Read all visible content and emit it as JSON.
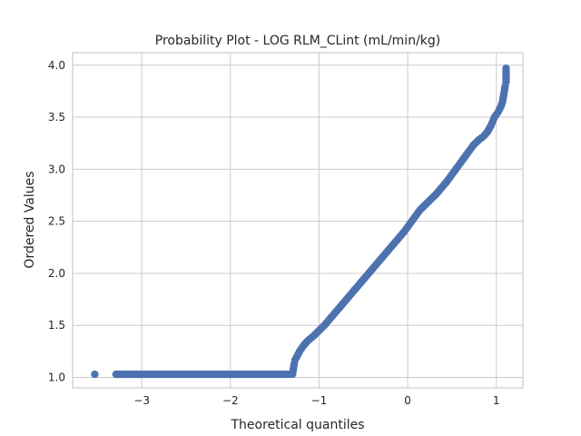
{
  "chart_data": {
    "type": "scatter",
    "title": "Probability Plot - LOG RLM_CLint (mL/min/kg)",
    "xlabel": "Theoretical quantiles",
    "ylabel": "Ordered Values",
    "xlim": [
      -3.78,
      1.3
    ],
    "ylim": [
      0.9,
      4.12
    ],
    "xticks": [
      -3,
      -2,
      -1,
      0,
      1
    ],
    "xtick_labels": [
      "−3",
      "−2",
      "−1",
      "0",
      "1"
    ],
    "yticks": [
      1.0,
      1.5,
      2.0,
      2.5,
      3.0,
      3.5,
      4.0
    ],
    "ytick_labels": [
      "1.0",
      "1.5",
      "2.0",
      "2.5",
      "3.0",
      "3.5",
      "4.0"
    ],
    "grid": true,
    "marker_color": "#4c72b0",
    "series": [
      {
        "points": [
          [
            -3.53,
            1.03
          ],
          [
            -3.29,
            1.03
          ],
          [
            -3.15,
            1.03
          ],
          [
            -3.05,
            1.03
          ],
          [
            -2.97,
            1.03
          ],
          [
            -2.9,
            1.03
          ],
          [
            -2.84,
            1.03
          ],
          [
            -2.78,
            1.03
          ],
          [
            -2.72,
            1.03
          ],
          [
            -2.66,
            1.03
          ],
          [
            -2.6,
            1.03
          ],
          [
            -2.54,
            1.03
          ],
          [
            -2.48,
            1.03
          ],
          [
            -2.42,
            1.03
          ],
          [
            -2.36,
            1.03
          ],
          [
            -2.3,
            1.03
          ],
          [
            -2.24,
            1.03
          ],
          [
            -2.18,
            1.03
          ],
          [
            -2.12,
            1.03
          ],
          [
            -2.06,
            1.03
          ],
          [
            -2.0,
            1.03
          ],
          [
            -1.94,
            1.03
          ],
          [
            -1.88,
            1.03
          ],
          [
            -1.82,
            1.03
          ],
          [
            -1.76,
            1.03
          ],
          [
            -1.7,
            1.03
          ],
          [
            -1.64,
            1.03
          ],
          [
            -1.58,
            1.03
          ],
          [
            -1.52,
            1.03
          ],
          [
            -1.46,
            1.03
          ],
          [
            -1.4,
            1.03
          ],
          [
            -1.34,
            1.03
          ],
          [
            -1.3,
            1.03
          ],
          [
            -1.29,
            1.08
          ],
          [
            -1.28,
            1.13
          ],
          [
            -1.27,
            1.17
          ],
          [
            -1.25,
            1.2
          ],
          [
            -1.22,
            1.25
          ],
          [
            -1.18,
            1.3
          ],
          [
            -1.13,
            1.35
          ],
          [
            -1.06,
            1.4
          ],
          [
            -1.0,
            1.45
          ],
          [
            -0.94,
            1.5
          ],
          [
            -0.88,
            1.56
          ],
          [
            -0.82,
            1.62
          ],
          [
            -0.76,
            1.68
          ],
          [
            -0.7,
            1.74
          ],
          [
            -0.64,
            1.8
          ],
          [
            -0.58,
            1.86
          ],
          [
            -0.52,
            1.92
          ],
          [
            -0.46,
            1.98
          ],
          [
            -0.4,
            2.04
          ],
          [
            -0.34,
            2.1
          ],
          [
            -0.28,
            2.16
          ],
          [
            -0.22,
            2.22
          ],
          [
            -0.16,
            2.28
          ],
          [
            -0.1,
            2.34
          ],
          [
            -0.04,
            2.4
          ],
          [
            0.02,
            2.47
          ],
          [
            0.08,
            2.54
          ],
          [
            0.14,
            2.61
          ],
          [
            0.2,
            2.66
          ],
          [
            0.26,
            2.71
          ],
          [
            0.32,
            2.76
          ],
          [
            0.38,
            2.82
          ],
          [
            0.44,
            2.88
          ],
          [
            0.5,
            2.95
          ],
          [
            0.56,
            3.02
          ],
          [
            0.62,
            3.09
          ],
          [
            0.68,
            3.16
          ],
          [
            0.74,
            3.23
          ],
          [
            0.8,
            3.28
          ],
          [
            0.86,
            3.32
          ],
          [
            0.9,
            3.36
          ],
          [
            0.94,
            3.42
          ],
          [
            0.98,
            3.5
          ],
          [
            1.02,
            3.55
          ],
          [
            1.05,
            3.6
          ],
          [
            1.07,
            3.65
          ],
          [
            1.08,
            3.7
          ],
          [
            1.09,
            3.75
          ],
          [
            1.1,
            3.8
          ],
          [
            1.11,
            3.84
          ],
          [
            1.11,
            3.97
          ]
        ]
      }
    ]
  }
}
